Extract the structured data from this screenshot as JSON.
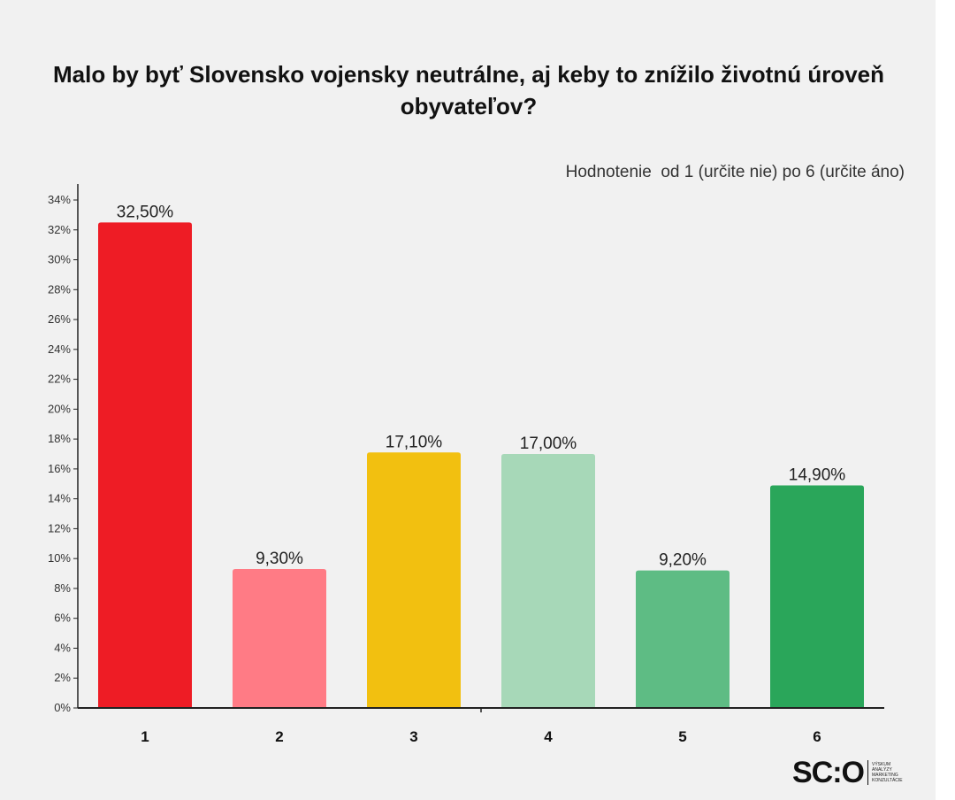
{
  "chart_data": {
    "type": "bar",
    "title": "Malo by byť Slovensko vojensky neutrálne, aj keby to znížilo životnú úroveň obyvateľov?",
    "subtitle": "Hodnotenie  od 1 (určite nie) po 6 (určite áno)",
    "categories": [
      "1",
      "2",
      "3",
      "4",
      "5",
      "6"
    ],
    "values": [
      32.5,
      9.3,
      17.1,
      17.0,
      9.2,
      14.9
    ],
    "data_labels": [
      "32,50%",
      "9,30%",
      "17,10%",
      "17,00%",
      "9,20%",
      "14,90%"
    ],
    "bar_colors": [
      "#ee1c25",
      "#ff7b85",
      "#f2c010",
      "#a7d8b8",
      "#5ebc84",
      "#2aa65a"
    ],
    "yticks": [
      "0%",
      "2%",
      "4%",
      "6%",
      "8%",
      "10%",
      "12%",
      "14%",
      "16%",
      "18%",
      "20%",
      "22%",
      "24%",
      "26%",
      "28%",
      "30%",
      "32%",
      "34%"
    ],
    "ylim": [
      0,
      34
    ],
    "xlabel": "",
    "ylabel": "",
    "grid": false,
    "legend": "none"
  },
  "logo": {
    "mark": "SC:O",
    "tagline": [
      "VÝSKUM",
      "ANALÝZY",
      "MARKETING",
      "KONZULTÁCIE"
    ]
  }
}
